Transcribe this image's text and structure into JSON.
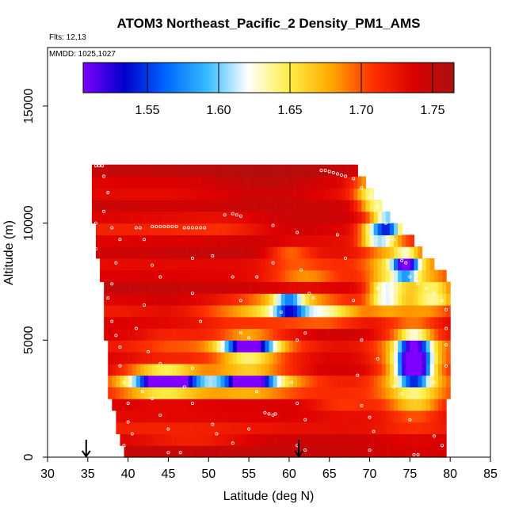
{
  "chart_data": {
    "type": "heatmap",
    "title": "ATOM3 Northeast_Pacific_2 Density_PM1_AMS",
    "annotations": {
      "flights": "Flts: 12,13",
      "dates": "MMDD: 1025,1027"
    },
    "xlabel": "Latitude (deg N)",
    "ylabel": "Altitude (m)",
    "xlim": [
      30,
      85
    ],
    "ylim": [
      0,
      17500
    ],
    "x_ticks": [
      30,
      35,
      40,
      45,
      50,
      55,
      60,
      65,
      70,
      75,
      80,
      85
    ],
    "y_ticks": [
      0,
      5000,
      10000,
      15000
    ],
    "colorbar": {
      "range": [
        1.505,
        1.765
      ],
      "ticks": [
        "1.55",
        "1.60",
        "1.65",
        "1.70",
        "1.75"
      ],
      "tick_values": [
        1.55,
        1.6,
        1.65,
        1.7,
        1.75
      ],
      "colors": [
        "#7f00ff",
        "#0000cc",
        "#0066ff",
        "#33bbff",
        "#ffffff",
        "#ffee44",
        "#ffaa00",
        "#ff3300",
        "#dd0000",
        "#aa1111"
      ]
    },
    "grid": {
      "lat_min": 35,
      "lat_max": 80,
      "lat_step": 0.5,
      "alt_step": 500,
      "alt_max": 12500,
      "background_value": 1.735
    },
    "domain_bounds": [
      {
        "alt": 0,
        "lat_min": 39.5,
        "lat_max": 79.5
      },
      {
        "alt": 2500,
        "lat_min": 37.5,
        "lat_max": 79.5
      },
      {
        "alt": 5000,
        "lat_min": 37.0,
        "lat_max": 80.0
      },
      {
        "alt": 7500,
        "lat_min": 36.5,
        "lat_max": 80.0
      },
      {
        "alt": 10000,
        "lat_min": 35.5,
        "lat_max": 73.0
      },
      {
        "alt": 12500,
        "lat_min": 35.5,
        "lat_max": 68.0
      }
    ],
    "features": [
      {
        "lat": 45,
        "alt": 3250,
        "value": 1.55,
        "sx": 2.2,
        "sy": 200
      },
      {
        "lat": 44,
        "alt": 3300,
        "value": 1.6,
        "sx": 4.0,
        "sy": 450
      },
      {
        "lat": 55,
        "alt": 3300,
        "value": 1.56,
        "sx": 2.0,
        "sy": 200
      },
      {
        "lat": 55,
        "alt": 3300,
        "value": 1.63,
        "sx": 4.5,
        "sy": 400
      },
      {
        "lat": 55,
        "alt": 4700,
        "value": 1.56,
        "sx": 2.0,
        "sy": 250
      },
      {
        "lat": 55,
        "alt": 4700,
        "value": 1.65,
        "sx": 4.0,
        "sy": 500
      },
      {
        "lat": 60,
        "alt": 6500,
        "value": 1.53,
        "sx": 1.2,
        "sy": 200
      },
      {
        "lat": 60,
        "alt": 6500,
        "value": 1.65,
        "sx": 4.0,
        "sy": 300
      },
      {
        "lat": 65,
        "alt": 6100,
        "value": 1.69,
        "sx": 3.0,
        "sy": 300
      },
      {
        "lat": 75.5,
        "alt": 4500,
        "value": 1.57,
        "sx": 1.3,
        "sy": 500
      },
      {
        "lat": 75.5,
        "alt": 3700,
        "value": 1.57,
        "sx": 1.3,
        "sy": 400
      },
      {
        "lat": 75.5,
        "alt": 4000,
        "value": 1.64,
        "sx": 3.0,
        "sy": 1500
      },
      {
        "lat": 78,
        "alt": 7000,
        "value": 1.64,
        "sx": 2.0,
        "sy": 400
      },
      {
        "lat": 72,
        "alt": 7000,
        "value": 1.62,
        "sx": 1.5,
        "sy": 400
      },
      {
        "lat": 74.5,
        "alt": 8200,
        "value": 1.57,
        "sx": 1.0,
        "sy": 350
      },
      {
        "lat": 74,
        "alt": 8300,
        "value": 1.65,
        "sx": 3.0,
        "sy": 700
      },
      {
        "lat": 71,
        "alt": 9500,
        "value": 1.6,
        "sx": 1.5,
        "sy": 350
      },
      {
        "lat": 72.5,
        "alt": 10000,
        "value": 1.6,
        "sx": 1.2,
        "sy": 350
      },
      {
        "lat": 70,
        "alt": 11500,
        "value": 1.68,
        "sx": 1.5,
        "sy": 500
      },
      {
        "lat": 71,
        "alt": 10800,
        "value": 1.65,
        "sx": 1.5,
        "sy": 400
      },
      {
        "lat": 62,
        "alt": 7800,
        "value": 1.69,
        "sx": 3.0,
        "sy": 300
      },
      {
        "lat": 61,
        "alt": 6000,
        "value": 1.7,
        "sx": 6.0,
        "sy": 300
      },
      {
        "lat": 65,
        "alt": 9000,
        "value": 1.71,
        "sx": 4.0,
        "sy": 500
      },
      {
        "lat": 45,
        "alt": 5000,
        "value": 1.71,
        "sx": 3.0,
        "sy": 400
      },
      {
        "lat": 48,
        "alt": 800,
        "value": 1.71,
        "sx": 5.0,
        "sy": 250
      },
      {
        "lat": 60,
        "alt": 8700,
        "value": 1.69,
        "sx": 2.0,
        "sy": 300
      },
      {
        "lat": 52,
        "alt": 9900,
        "value": 1.72,
        "sx": 4.0,
        "sy": 300
      },
      {
        "lat": 67,
        "alt": 2200,
        "value": 1.7,
        "sx": 3.0,
        "sy": 300
      },
      {
        "lat": 76,
        "alt": 2200,
        "value": 1.7,
        "sx": 2.5,
        "sy": 300
      },
      {
        "lat": 52,
        "alt": 6000,
        "value": 1.72,
        "sx": 3.0,
        "sy": 300
      },
      {
        "lat": 45,
        "alt": 3900,
        "value": 1.72,
        "sx": 2.0,
        "sy": 200
      },
      {
        "lat": 58,
        "alt": 11500,
        "value": 1.76,
        "sx": 6.0,
        "sy": 500
      },
      {
        "lat": 62,
        "alt": 9800,
        "value": 1.76,
        "sx": 6.0,
        "sy": 400
      },
      {
        "lat": 45,
        "alt": 6500,
        "value": 1.76,
        "sx": 3.0,
        "sy": 200
      }
    ],
    "sample_points": [
      [
        36,
        12450
      ],
      [
        36.4,
        12450
      ],
      [
        36.8,
        12450
      ],
      [
        37,
        12000
      ],
      [
        37.5,
        11300
      ],
      [
        37,
        10500
      ],
      [
        36,
        10000
      ],
      [
        35.3,
        9700
      ],
      [
        36,
        8900
      ],
      [
        35.5,
        8700
      ],
      [
        38,
        9800
      ],
      [
        39,
        9300
      ],
      [
        38.5,
        8300
      ],
      [
        38,
        7400
      ],
      [
        37.5,
        6800
      ],
      [
        38,
        5800
      ],
      [
        38.5,
        5200
      ],
      [
        39,
        4700
      ],
      [
        39,
        3900
      ],
      [
        39.5,
        3200
      ],
      [
        40,
        2300
      ],
      [
        40,
        1500
      ],
      [
        40.5,
        1000
      ],
      [
        39.5,
        500
      ],
      [
        43,
        9850
      ],
      [
        43.5,
        9850
      ],
      [
        44,
        9850
      ],
      [
        44.5,
        9850
      ],
      [
        45,
        9850
      ],
      [
        45.5,
        9850
      ],
      [
        46,
        9850
      ],
      [
        41,
        9800
      ],
      [
        41.5,
        9800
      ],
      [
        42,
        9300
      ],
      [
        43,
        8200
      ],
      [
        44,
        7700
      ],
      [
        41,
        5500
      ],
      [
        42,
        6500
      ],
      [
        42.5,
        4500
      ],
      [
        44,
        4000
      ],
      [
        41.8,
        2800
      ],
      [
        43,
        2500
      ],
      [
        44,
        1800
      ],
      [
        45,
        1200
      ],
      [
        45,
        200
      ],
      [
        46.5,
        200
      ],
      [
        48,
        8500
      ],
      [
        48,
        7000
      ],
      [
        49,
        5800
      ],
      [
        48,
        3800
      ],
      [
        48,
        2300
      ],
      [
        47,
        3000
      ],
      [
        47,
        9800
      ],
      [
        47.5,
        9800
      ],
      [
        48,
        9800
      ],
      [
        48.5,
        9800
      ],
      [
        49,
        9800
      ],
      [
        49.5,
        9800
      ],
      [
        50.5,
        8600
      ],
      [
        50.5,
        1400
      ],
      [
        51,
        1000
      ],
      [
        53,
        10400
      ],
      [
        53.5,
        10350
      ],
      [
        54,
        10300
      ],
      [
        52,
        10350
      ],
      [
        53,
        7700
      ],
      [
        54,
        6700
      ],
      [
        55,
        5100
      ],
      [
        54,
        5300
      ],
      [
        56,
        2800
      ],
      [
        57,
        1900
      ],
      [
        58,
        1800
      ],
      [
        57.5,
        1850
      ],
      [
        58.3,
        1850
      ],
      [
        55,
        1200
      ],
      [
        53,
        600
      ],
      [
        56,
        7700
      ],
      [
        58,
        9900
      ],
      [
        58,
        8300
      ],
      [
        59,
        6200
      ],
      [
        61,
        9600
      ],
      [
        61.5,
        8000
      ],
      [
        62.5,
        7000
      ],
      [
        63,
        6800
      ],
      [
        62,
        5300
      ],
      [
        61,
        5000
      ],
      [
        61,
        2300
      ],
      [
        62,
        1600
      ],
      [
        61,
        500
      ],
      [
        62,
        300
      ],
      [
        60.3,
        3200
      ],
      [
        64,
        12250
      ],
      [
        64.5,
        12250
      ],
      [
        65,
        12200
      ],
      [
        65.5,
        12150
      ],
      [
        66,
        12100
      ],
      [
        66.5,
        12050
      ],
      [
        67,
        12000
      ],
      [
        68,
        11900
      ],
      [
        69,
        11500
      ],
      [
        70,
        11100
      ],
      [
        71,
        10700
      ],
      [
        72,
        10000
      ],
      [
        73,
        9300
      ],
      [
        72.5,
        9300
      ],
      [
        74,
        8400
      ],
      [
        74.5,
        8300
      ],
      [
        75,
        7700
      ],
      [
        76,
        7400
      ],
      [
        77,
        7200
      ],
      [
        78,
        7000
      ],
      [
        79,
        6700
      ],
      [
        79.5,
        6300
      ],
      [
        79.5,
        5500
      ],
      [
        79.5,
        4800
      ],
      [
        79.5,
        3900
      ],
      [
        66,
        9500
      ],
      [
        67,
        8500
      ],
      [
        68,
        6700
      ],
      [
        69,
        5000
      ],
      [
        68.5,
        3500
      ],
      [
        69,
        2200
      ],
      [
        70,
        1700
      ],
      [
        70.5,
        1100
      ],
      [
        70,
        300
      ],
      [
        71,
        7200
      ],
      [
        71,
        4200
      ],
      [
        73,
        3000
      ],
      [
        74,
        2700
      ],
      [
        75,
        1600
      ],
      [
        75.5,
        100
      ],
      [
        76,
        100
      ],
      [
        78,
        3200
      ],
      [
        78,
        900
      ],
      [
        79,
        500
      ]
    ],
    "arrows": [
      {
        "lat": 34.8,
        "alt": 0
      },
      {
        "lat": 61.2,
        "alt": 0
      }
    ]
  }
}
